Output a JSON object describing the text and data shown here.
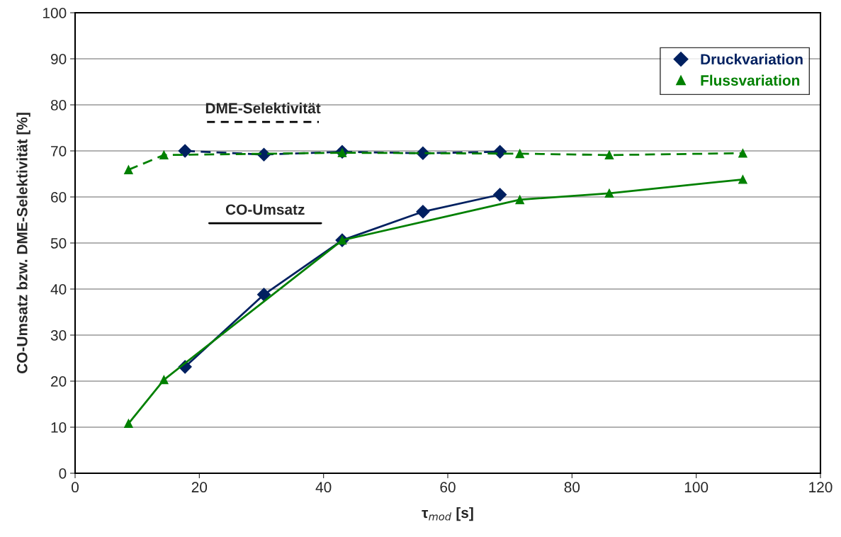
{
  "chart_data": {
    "type": "line",
    "xlabel": "τ$_{mod}$ [s]",
    "ylabel": "CO-Umsatz bzw. DME-Selektivität [%]",
    "xlim": [
      0,
      120
    ],
    "xticks": [
      0,
      20,
      40,
      60,
      80,
      100,
      120
    ],
    "ylim": [
      0,
      100
    ],
    "yticks": [
      0,
      10,
      20,
      30,
      40,
      50,
      60,
      70,
      80,
      90,
      100
    ],
    "grid": "y",
    "legend": "top right",
    "annotations": [
      "DME-Selektivität",
      "CO-Umsatz"
    ],
    "series": [
      {
        "name": "Druckvariation",
        "color": "#002060",
        "marker": "diamond",
        "line_style": "solid",
        "x": [
          17.7,
          30.4,
          43.0,
          56.0,
          68.4
        ],
        "values": [
          23.1,
          38.8,
          50.6,
          56.8,
          60.5
        ]
      },
      {
        "name": "Flussvariation",
        "color": "#008000",
        "marker": "triangle",
        "line_style": "solid",
        "x": [
          8.6,
          14.3,
          43.0,
          71.6,
          86.0,
          107.5
        ],
        "values": [
          10.8,
          20.3,
          50.6,
          59.4,
          60.8,
          63.8
        ]
      },
      {
        "color": "#002060",
        "marker": "diamond",
        "line_style": "dashed",
        "x": [
          17.7,
          30.4,
          43.0,
          56.0,
          68.4
        ],
        "values": [
          70.0,
          69.2,
          69.8,
          69.5,
          69.8
        ]
      },
      {
        "color": "#008000",
        "marker": "triangle",
        "line_style": "dashed",
        "x": [
          8.6,
          14.3,
          43.0,
          71.6,
          86.0,
          107.5
        ],
        "values": [
          65.9,
          69.1,
          69.6,
          69.4,
          69.1,
          69.5
        ]
      }
    ]
  }
}
